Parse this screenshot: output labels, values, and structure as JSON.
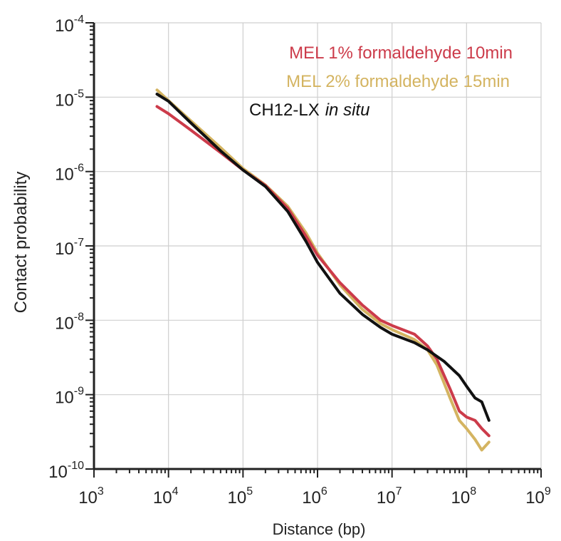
{
  "chart_data": {
    "type": "line",
    "title": "",
    "xlabel": "Distance (bp)",
    "ylabel": "Contact probability",
    "xscale": "log",
    "yscale": "log",
    "xlim": [
      1000,
      1000000000
    ],
    "ylim": [
      1e-10,
      0.0001
    ],
    "x_ticks": [
      {
        "value": 1000,
        "base": "10",
        "exp": "3"
      },
      {
        "value": 10000,
        "base": "10",
        "exp": "4"
      },
      {
        "value": 100000,
        "base": "10",
        "exp": "5"
      },
      {
        "value": 1000000,
        "base": "10",
        "exp": "6"
      },
      {
        "value": 10000000,
        "base": "10",
        "exp": "7"
      },
      {
        "value": 100000000,
        "base": "10",
        "exp": "8"
      },
      {
        "value": 1000000000,
        "base": "10",
        "exp": "9"
      }
    ],
    "y_ticks": [
      {
        "value": 1e-10,
        "base": "10",
        "exp": "-10"
      },
      {
        "value": 1e-09,
        "base": "10",
        "exp": "-9"
      },
      {
        "value": 1e-08,
        "base": "10",
        "exp": "-8"
      },
      {
        "value": 1e-07,
        "base": "10",
        "exp": "-7"
      },
      {
        "value": 1e-06,
        "base": "10",
        "exp": "-6"
      },
      {
        "value": 1e-05,
        "base": "10",
        "exp": "-5"
      },
      {
        "value": 0.0001,
        "base": "10",
        "exp": "-4"
      }
    ],
    "grid": true,
    "legend_position": "top-right",
    "series": [
      {
        "name": "MEL 1% formaldehyde 10min",
        "color": "#cc3b4a",
        "points": [
          [
            7000,
            7.5e-06
          ],
          [
            10000,
            6e-06
          ],
          [
            20000,
            3.6e-06
          ],
          [
            50000,
            1.8e-06
          ],
          [
            100000,
            1.05e-06
          ],
          [
            200000,
            6.5e-07
          ],
          [
            400000,
            3.2e-07
          ],
          [
            700000,
            1.35e-07
          ],
          [
            1000000,
            7.5e-08
          ],
          [
            2000000,
            3.2e-08
          ],
          [
            4000000,
            1.6e-08
          ],
          [
            7000000,
            1e-08
          ],
          [
            10000000,
            8.5e-09
          ],
          [
            20000000,
            6.5e-09
          ],
          [
            30000000,
            4.5e-09
          ],
          [
            40000000,
            3e-09
          ],
          [
            60000000,
            1.2e-09
          ],
          [
            80000000,
            6e-10
          ],
          [
            100000000,
            5e-10
          ],
          [
            130000000,
            4.5e-10
          ],
          [
            160000000,
            3.5e-10
          ],
          [
            200000000,
            2.8e-10
          ]
        ]
      },
      {
        "name": "MEL 2% formaldehyde 15min",
        "color": "#d4b461",
        "points": [
          [
            7000,
            1.25e-05
          ],
          [
            10000,
            9e-06
          ],
          [
            20000,
            4.8e-06
          ],
          [
            50000,
            2.1e-06
          ],
          [
            100000,
            1.1e-06
          ],
          [
            200000,
            6.6e-07
          ],
          [
            400000,
            3.4e-07
          ],
          [
            700000,
            1.5e-07
          ],
          [
            1000000,
            8e-08
          ],
          [
            2000000,
            3e-08
          ],
          [
            4000000,
            1.4e-08
          ],
          [
            7000000,
            9e-09
          ],
          [
            10000000,
            7.5e-09
          ],
          [
            20000000,
            5.5e-09
          ],
          [
            30000000,
            4e-09
          ],
          [
            40000000,
            2.5e-09
          ],
          [
            60000000,
            9e-10
          ],
          [
            80000000,
            4.5e-10
          ],
          [
            100000000,
            3.5e-10
          ],
          [
            130000000,
            2.5e-10
          ],
          [
            160000000,
            1.8e-10
          ],
          [
            200000000,
            2.3e-10
          ]
        ]
      },
      {
        "name": "CH12-LX in situ",
        "name_plain": "CH12-LX",
        "name_italic": "in situ",
        "color": "#111111",
        "points": [
          [
            7000,
            1.1e-05
          ],
          [
            10000,
            8.8e-06
          ],
          [
            20000,
            4.5e-06
          ],
          [
            50000,
            1.9e-06
          ],
          [
            100000,
            1.05e-06
          ],
          [
            200000,
            6.3e-07
          ],
          [
            400000,
            2.9e-07
          ],
          [
            700000,
            1.15e-07
          ],
          [
            1000000,
            6e-08
          ],
          [
            2000000,
            2.3e-08
          ],
          [
            4000000,
            1.2e-08
          ],
          [
            7000000,
            8e-09
          ],
          [
            10000000,
            6.5e-09
          ],
          [
            20000000,
            5e-09
          ],
          [
            30000000,
            4e-09
          ],
          [
            50000000,
            2.8e-09
          ],
          [
            80000000,
            1.8e-09
          ],
          [
            100000000,
            1.3e-09
          ],
          [
            130000000,
            9e-10
          ],
          [
            160000000,
            8e-10
          ],
          [
            200000000,
            4.5e-10
          ]
        ]
      }
    ]
  }
}
